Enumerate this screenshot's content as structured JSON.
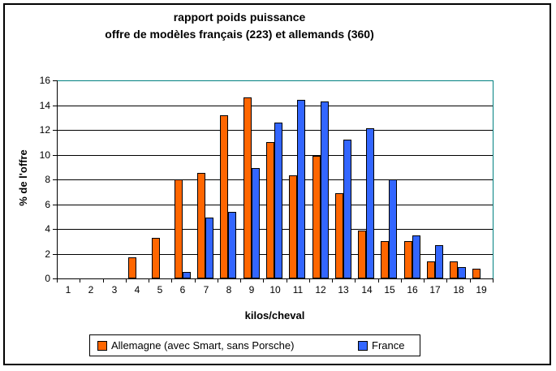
{
  "chart_data": {
    "type": "bar",
    "title_lines": [
      "rapport poids puissance",
      "offre de modèles français (223) et allemands (360)"
    ],
    "xlabel": "kilos/cheval",
    "ylabel": "% de l'offre",
    "categories": [
      "1",
      "2",
      "3",
      "4",
      "5",
      "6",
      "7",
      "8",
      "9",
      "10",
      "11",
      "12",
      "13",
      "14",
      "15",
      "16",
      "17",
      "18",
      "19"
    ],
    "series": [
      {
        "name": "Allemagne (avec Smart, sans Porsche)",
        "color": "#FF6600",
        "values": [
          0,
          0,
          0,
          1.7,
          3.3,
          8.0,
          8.5,
          13.2,
          14.6,
          11.0,
          8.3,
          9.9,
          6.9,
          3.9,
          3.0,
          3.0,
          1.4,
          1.4,
          0.8
        ]
      },
      {
        "name": "France",
        "color": "#3366FF",
        "values": [
          0,
          0,
          0,
          0,
          0,
          0.5,
          4.9,
          5.4,
          8.9,
          12.6,
          14.4,
          14.3,
          11.2,
          12.1,
          8.0,
          3.5,
          2.7,
          0.9,
          0
        ]
      }
    ],
    "ylim": [
      0,
      16
    ],
    "yticks": [
      0,
      2,
      4,
      6,
      8,
      10,
      12,
      14,
      16
    ],
    "grid": true,
    "legend_position": "bottom",
    "plot_border_color": "#008080",
    "axis_color": "#000000"
  }
}
